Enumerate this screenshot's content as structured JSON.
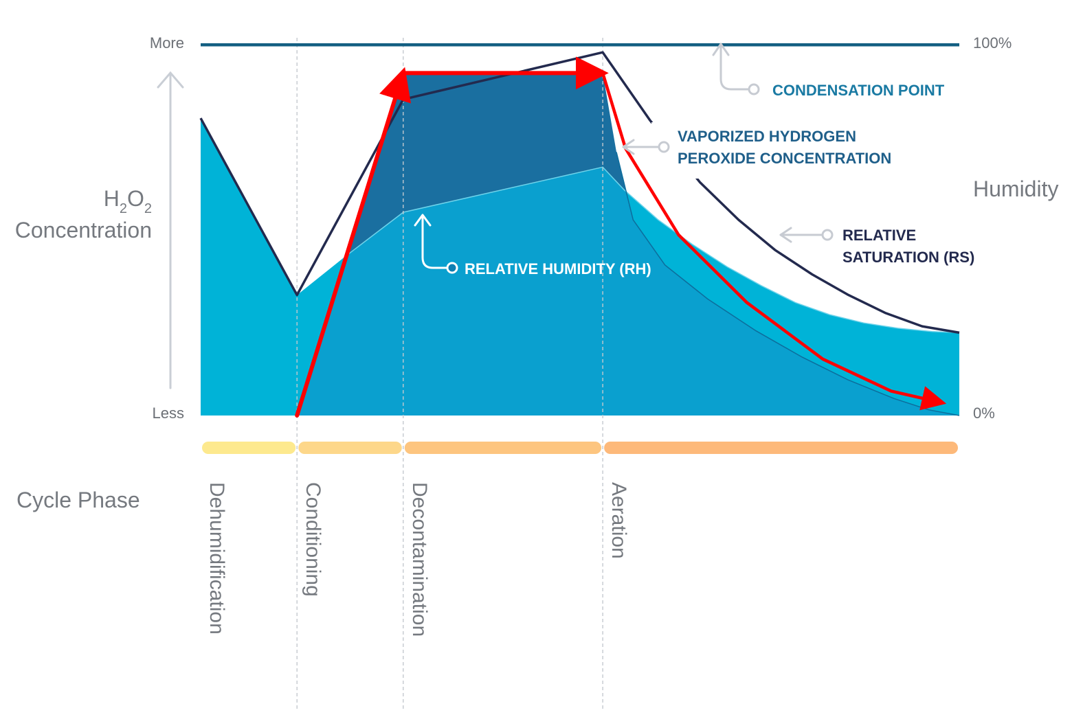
{
  "chart_data": {
    "type": "area",
    "title": "",
    "y_axis_left": {
      "label_main": "Concentration",
      "label_formula": {
        "h": "H",
        "sub1": "2",
        "o": "O",
        "sub2": "2"
      },
      "top_label": "More",
      "bottom_label": "Less"
    },
    "y_axis_right": {
      "label": "Humidity",
      "top_label": "100%",
      "bottom_label": "0%",
      "range": [
        0,
        100
      ]
    },
    "x_label": "Cycle Phase",
    "x_range": [
      0,
      100
    ],
    "phases": [
      {
        "name": "Dehumidification",
        "start": 0,
        "end": 12.7,
        "color": "#fde98e"
      },
      {
        "name": "Conditioning",
        "start": 12.7,
        "end": 26.7,
        "color": "#fdd78a"
      },
      {
        "name": "Decontamination",
        "start": 26.7,
        "end": 53,
        "color": "#fdc57f"
      },
      {
        "name": "Aeration",
        "start": 53,
        "end": 100,
        "color": "#fdb97a"
      }
    ],
    "series": [
      {
        "name": "RELATIVE HUMIDITY (RH)",
        "color": "#00b3d7",
        "points": [
          [
            0,
            79
          ],
          [
            12.7,
            32
          ],
          [
            18.9,
            42
          ],
          [
            26.7,
            54
          ],
          [
            53,
            66
          ],
          [
            55.8,
            60
          ],
          [
            60.3,
            52
          ],
          [
            64.8,
            45.5
          ],
          [
            69.4,
            39.5
          ],
          [
            73.9,
            34.5
          ],
          [
            78.4,
            30
          ],
          [
            82.9,
            26.8
          ],
          [
            87.4,
            24.6
          ],
          [
            91.9,
            23.2
          ],
          [
            96.4,
            22.3
          ],
          [
            100,
            22
          ]
        ]
      },
      {
        "name": "VAPORIZED HYDROGEN PEROXIDE CONCENTRATION",
        "color": "#1a6fa0",
        "points": [
          [
            0,
            0
          ],
          [
            12.7,
            0
          ],
          [
            26.7,
            91
          ],
          [
            53,
            91
          ],
          [
            54.8,
            70
          ],
          [
            57,
            52
          ],
          [
            61.2,
            40
          ],
          [
            66.8,
            31
          ],
          [
            73.2,
            22.5
          ],
          [
            79.3,
            15.5
          ],
          [
            85.3,
            9.5
          ],
          [
            91.4,
            4.5
          ],
          [
            96,
            1.5
          ],
          [
            100,
            0
          ]
        ]
      },
      {
        "name": "RELATIVE SATURATION (RS)",
        "color": "#232a4e",
        "points": [
          [
            0,
            79
          ],
          [
            12.7,
            32
          ],
          [
            26.7,
            84
          ],
          [
            53,
            96.5
          ],
          [
            59.2,
            78.5
          ],
          [
            65.8,
            62
          ],
          [
            70.9,
            52
          ],
          [
            75.7,
            44
          ],
          [
            80.6,
            37.5
          ],
          [
            85.4,
            32
          ],
          [
            90.3,
            27.2
          ],
          [
            95.1,
            23.7
          ],
          [
            100,
            22
          ]
        ]
      },
      {
        "name": "CONDENSATION POINT",
        "color": "#135f82",
        "points": [
          [
            0,
            98.5
          ],
          [
            100,
            98.5
          ]
        ]
      }
    ],
    "highlight": {
      "color": "#ff0000",
      "description": "VHP concentration profile",
      "points": [
        [
          12.7,
          0
        ],
        [
          26.7,
          91
        ],
        [
          53,
          91
        ],
        [
          56,
          71
        ],
        [
          63,
          48
        ],
        [
          72,
          30
        ],
        [
          82,
          15
        ],
        [
          91,
          6.5
        ],
        [
          97.5,
          3.5
        ]
      ]
    },
    "annotations": [
      {
        "text_lines": [
          "CONDENSATION POINT"
        ],
        "color": "#1a7aa3"
      },
      {
        "text_lines": [
          "VAPORIZED HYDROGEN",
          "PEROXIDE CONCENTRATION"
        ],
        "color": "#1f5f8a"
      },
      {
        "text_lines": [
          "RELATIVE",
          "SATURATION (RS)"
        ],
        "color": "#232a4e"
      },
      {
        "text_lines": [
          "RELATIVE HUMIDITY (RH)"
        ],
        "color": "#ffffff"
      }
    ],
    "grid": false,
    "legend": "none"
  }
}
